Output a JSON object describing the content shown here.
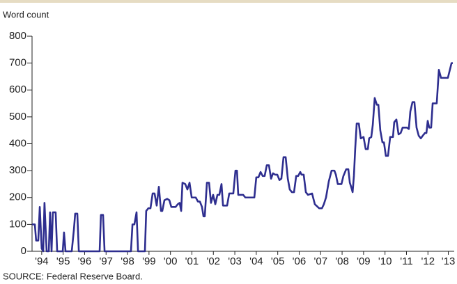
{
  "chart_data": {
    "type": "line",
    "y_label": "Word count",
    "source": "SOURCE: Federal Reserve Board.",
    "xlim": [
      1994,
      2013.61
    ],
    "ylim": [
      0,
      800
    ],
    "yticks": [
      0,
      100,
      200,
      300,
      400,
      500,
      600,
      700,
      800
    ],
    "xticks": [
      {
        "value": 1994.45,
        "label": "'94"
      },
      {
        "value": 1995.45,
        "label": "'95"
      },
      {
        "value": 1996.45,
        "label": "'96"
      },
      {
        "value": 1997.45,
        "label": "'97"
      },
      {
        "value": 1998.45,
        "label": "'98"
      },
      {
        "value": 1999.45,
        "label": "'99"
      },
      {
        "value": 2000.45,
        "label": "'00"
      },
      {
        "value": 2001.45,
        "label": "'01"
      },
      {
        "value": 2002.45,
        "label": "'02"
      },
      {
        "value": 2003.45,
        "label": "'03"
      },
      {
        "value": 2004.45,
        "label": "'04"
      },
      {
        "value": 2005.45,
        "label": "'05"
      },
      {
        "value": 2006.45,
        "label": "'06"
      },
      {
        "value": 2007.45,
        "label": "'07"
      },
      {
        "value": 2008.45,
        "label": "'08"
      },
      {
        "value": 2009.45,
        "label": "'09"
      },
      {
        "value": 2010.45,
        "label": "'10"
      },
      {
        "value": 2011.45,
        "label": "'11"
      },
      {
        "value": 2012.45,
        "label": "'12"
      },
      {
        "value": 2013.4,
        "label": "'13"
      }
    ],
    "series": [
      {
        "color": "#2e2e8f",
        "x": [
          1994.0,
          1994.13,
          1994.19,
          1994.29,
          1994.36,
          1994.45,
          1994.52,
          1994.58,
          1994.68,
          1994.78,
          1994.84,
          1994.91,
          1994.97,
          1995.1,
          1995.17,
          1995.43,
          1995.49,
          1995.56,
          1995.85,
          1995.95,
          1996.01,
          1996.11,
          1996.18,
          1997.15,
          1997.21,
          1997.31,
          1997.38,
          1998.61,
          1998.68,
          1998.77,
          1998.87,
          1998.94,
          1999.26,
          1999.32,
          1999.42,
          1999.52,
          1999.62,
          1999.71,
          1999.81,
          1999.91,
          2000.01,
          2000.07,
          2000.17,
          2000.3,
          2000.4,
          2000.49,
          2000.69,
          2000.79,
          2000.88,
          2000.95,
          2001.01,
          2001.14,
          2001.24,
          2001.34,
          2001.44,
          2001.63,
          2001.73,
          2001.82,
          2001.92,
          2001.99,
          2002.05,
          2002.15,
          2002.25,
          2002.34,
          2002.44,
          2002.54,
          2002.64,
          2002.73,
          2002.83,
          2002.9,
          2003.09,
          2003.19,
          2003.38,
          2003.48,
          2003.55,
          2003.61,
          2003.84,
          2003.94,
          2004.36,
          2004.45,
          2004.55,
          2004.65,
          2004.75,
          2004.84,
          2004.94,
          2005.04,
          2005.14,
          2005.23,
          2005.33,
          2005.43,
          2005.53,
          2005.62,
          2005.72,
          2005.82,
          2005.92,
          2006.01,
          2006.11,
          2006.21,
          2006.31,
          2006.4,
          2006.5,
          2006.56,
          2006.66,
          2006.76,
          2006.86,
          2007.05,
          2007.18,
          2007.38,
          2007.51,
          2007.6,
          2007.7,
          2007.83,
          2007.96,
          2008.09,
          2008.16,
          2008.25,
          2008.42,
          2008.51,
          2008.64,
          2008.74,
          2008.81,
          2008.87,
          2008.94,
          2009.0,
          2009.06,
          2009.13,
          2009.23,
          2009.32,
          2009.45,
          2009.55,
          2009.65,
          2009.71,
          2009.81,
          2009.88,
          2009.97,
          2010.07,
          2010.14,
          2010.23,
          2010.33,
          2010.4,
          2010.49,
          2010.59,
          2010.69,
          2010.82,
          2010.88,
          2010.98,
          2011.08,
          2011.18,
          2011.27,
          2011.47,
          2011.56,
          2011.63,
          2011.73,
          2011.82,
          2011.92,
          2012.02,
          2012.12,
          2012.21,
          2012.31,
          2012.38,
          2012.44,
          2012.51,
          2012.6,
          2012.67,
          2012.86,
          2012.96,
          2013.06,
          2013.38,
          2013.55,
          2013.61
        ],
        "values": [
          100,
          100,
          40,
          40,
          165,
          10,
          0,
          180,
          0,
          0,
          145,
          0,
          145,
          145,
          0,
          0,
          70,
          0,
          0,
          80,
          140,
          140,
          0,
          0,
          135,
          135,
          0,
          0,
          100,
          100,
          145,
          0,
          0,
          150,
          160,
          160,
          215,
          215,
          170,
          240,
          150,
          150,
          190,
          195,
          190,
          165,
          165,
          175,
          180,
          150,
          255,
          250,
          230,
          255,
          200,
          200,
          185,
          185,
          165,
          130,
          130,
          255,
          255,
          180,
          210,
          175,
          210,
          210,
          250,
          170,
          170,
          215,
          215,
          300,
          300,
          210,
          210,
          200,
          200,
          275,
          275,
          295,
          280,
          280,
          320,
          320,
          270,
          290,
          285,
          285,
          265,
          270,
          350,
          350,
          270,
          230,
          220,
          220,
          280,
          280,
          295,
          285,
          285,
          220,
          210,
          215,
          175,
          160,
          160,
          175,
          200,
          260,
          300,
          300,
          285,
          250,
          250,
          280,
          305,
          305,
          255,
          240,
          220,
          280,
          380,
          475,
          475,
          420,
          425,
          380,
          380,
          420,
          425,
          470,
          570,
          545,
          545,
          450,
          405,
          405,
          355,
          355,
          425,
          425,
          480,
          490,
          435,
          440,
          460,
          460,
          455,
          520,
          555,
          555,
          460,
          430,
          420,
          430,
          440,
          440,
          485,
          460,
          460,
          550,
          550,
          675,
          645,
          645,
          700,
          700
        ]
      }
    ]
  }
}
